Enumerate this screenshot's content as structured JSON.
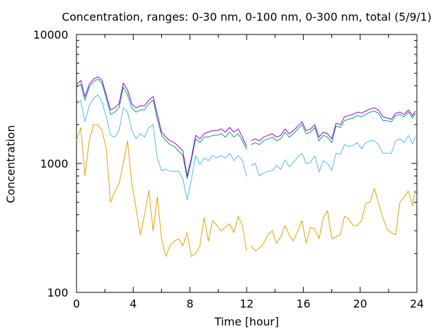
{
  "chart_data": {
    "type": "line",
    "title": "Concentration, ranges: 0-30 nm, 0-100 nm, 0-300 nm, total (5/9/1)",
    "xlabel": "Time [hour]",
    "ylabel": "Concentration",
    "xlim": [
      0,
      24
    ],
    "ylim": [
      100,
      10000
    ],
    "yscale": "log",
    "grid": false,
    "legend": "none",
    "x_ticks": [
      "0",
      "4",
      "8",
      "12",
      "16",
      "20",
      "24"
    ],
    "y_ticks": [
      "100",
      "1000",
      "10000"
    ],
    "series": [
      {
        "color": "#e0a000",
        "x": [
          0.0,
          0.3,
          0.6,
          0.9,
          1.2,
          1.5,
          1.8,
          2.1,
          2.4,
          2.7,
          3.0,
          3.3,
          3.6,
          3.9,
          4.2,
          4.5,
          4.8,
          5.1,
          5.4,
          5.7,
          6.0,
          6.3,
          6.6,
          6.9,
          7.2,
          7.5,
          7.8,
          8.1,
          8.4,
          8.7,
          9.0,
          9.3,
          9.6,
          9.9,
          10.2,
          10.5,
          10.8,
          11.1,
          11.4,
          11.7,
          12.0,
          null,
          12.3,
          12.6,
          12.9,
          13.2,
          13.5,
          13.8,
          14.1,
          14.4,
          14.7,
          15.0,
          15.3,
          15.6,
          15.9,
          16.2,
          16.5,
          16.8,
          17.1,
          17.4,
          17.7,
          18.0,
          18.3,
          18.6,
          18.9,
          19.2,
          19.5,
          19.8,
          20.1,
          20.4,
          20.7,
          21.0,
          21.3,
          21.6,
          21.9,
          22.2,
          22.5,
          22.8,
          23.1,
          23.4,
          23.7,
          23.9
        ],
        "y": [
          1500,
          1900,
          800,
          1500,
          2000,
          2000,
          1800,
          1300,
          500,
          600,
          700,
          1000,
          1500,
          700,
          450,
          280,
          400,
          620,
          300,
          550,
          260,
          190,
          230,
          250,
          260,
          230,
          290,
          190,
          200,
          230,
          380,
          250,
          360,
          330,
          300,
          320,
          340,
          290,
          390,
          330,
          210,
          null,
          230,
          210,
          220,
          240,
          280,
          300,
          240,
          270,
          330,
          280,
          250,
          300,
          360,
          240,
          320,
          310,
          260,
          380,
          430,
          260,
          270,
          280,
          390,
          370,
          330,
          330,
          360,
          490,
          500,
          640,
          490,
          380,
          310,
          290,
          280,
          500,
          550,
          610,
          470,
          620
        ]
      },
      {
        "color": "#56b4e9",
        "x": [
          0.0,
          0.3,
          0.6,
          0.9,
          1.2,
          1.5,
          1.8,
          2.1,
          2.4,
          2.7,
          3.0,
          3.3,
          3.6,
          3.9,
          4.2,
          4.5,
          4.8,
          5.1,
          5.4,
          5.7,
          6.0,
          6.3,
          6.6,
          6.9,
          7.2,
          7.5,
          7.8,
          8.1,
          8.4,
          8.7,
          9.0,
          9.3,
          9.6,
          9.9,
          10.2,
          10.5,
          10.8,
          11.1,
          11.4,
          11.7,
          12.0,
          null,
          12.3,
          12.6,
          12.9,
          13.2,
          13.5,
          13.8,
          14.1,
          14.4,
          14.7,
          15.0,
          15.3,
          15.6,
          15.9,
          16.2,
          16.5,
          16.8,
          17.1,
          17.4,
          17.7,
          18.0,
          18.3,
          18.6,
          18.9,
          19.2,
          19.5,
          19.8,
          20.1,
          20.4,
          20.7,
          21.0,
          21.3,
          21.6,
          21.9,
          22.2,
          22.5,
          22.8,
          23.1,
          23.4,
          23.7,
          23.9
        ],
        "y": [
          2900,
          3100,
          2100,
          2800,
          3200,
          3400,
          3000,
          2300,
          1650,
          1600,
          1800,
          2700,
          2500,
          1800,
          1550,
          1700,
          1600,
          1900,
          2000,
          1100,
          880,
          900,
          870,
          870,
          870,
          760,
          520,
          750,
          1150,
          980,
          1100,
          1050,
          1150,
          1100,
          1150,
          1100,
          1200,
          1050,
          1150,
          1050,
          790,
          null,
          960,
          1000,
          800,
          840,
          870,
          880,
          960,
          900,
          1070,
          940,
          1020,
          1120,
          1200,
          1000,
          1020,
          1150,
          860,
          1050,
          1000,
          880,
          1200,
          1180,
          1400,
          1350,
          1380,
          1450,
          1300,
          1450,
          1500,
          1500,
          1400,
          1200,
          1200,
          1200,
          1500,
          1550,
          1450,
          1650,
          1420,
          1620
        ]
      },
      {
        "color": "#009e73",
        "x": [
          0.0,
          0.3,
          0.6,
          0.9,
          1.2,
          1.5,
          1.8,
          2.1,
          2.4,
          2.7,
          3.0,
          3.3,
          3.6,
          3.9,
          4.2,
          4.5,
          4.8,
          5.1,
          5.4,
          5.7,
          6.0,
          6.3,
          6.6,
          6.9,
          7.2,
          7.5,
          7.8,
          8.1,
          8.4,
          8.7,
          9.0,
          9.3,
          9.6,
          9.9,
          10.2,
          10.5,
          10.8,
          11.1,
          11.4,
          11.7,
          12.0,
          null,
          12.3,
          12.6,
          12.9,
          13.2,
          13.5,
          13.8,
          14.1,
          14.4,
          14.7,
          15.0,
          15.3,
          15.6,
          15.9,
          16.2,
          16.5,
          16.8,
          17.1,
          17.4,
          17.7,
          18.0,
          18.3,
          18.6,
          18.9,
          19.2,
          19.5,
          19.8,
          20.1,
          20.4,
          20.7,
          21.0,
          21.3,
          21.6,
          21.9,
          22.2,
          22.5,
          22.8,
          23.1,
          23.4,
          23.7,
          23.9
        ],
        "y": [
          3900,
          4100,
          3100,
          3900,
          4300,
          4500,
          4200,
          3200,
          2400,
          2500,
          2700,
          3900,
          3400,
          2700,
          2500,
          2600,
          2600,
          2900,
          3100,
          2200,
          1650,
          1500,
          1400,
          1350,
          1250,
          1150,
          760,
          1050,
          1550,
          1450,
          1600,
          1600,
          1650,
          1650,
          1700,
          1600,
          1750,
          1600,
          1700,
          1500,
          1280,
          null,
          1400,
          1450,
          1400,
          1500,
          1550,
          1600,
          1500,
          1550,
          1750,
          1600,
          1700,
          1850,
          2000,
          1700,
          1750,
          1900,
          1500,
          1650,
          1600,
          1450,
          1950,
          1900,
          2150,
          2200,
          2250,
          2350,
          2300,
          2400,
          2500,
          2550,
          2450,
          2150,
          2150,
          2100,
          2350,
          2400,
          2300,
          2500,
          2250,
          2450
        ]
      },
      {
        "color": "#9400d3",
        "x": [
          0.0,
          0.3,
          0.6,
          0.9,
          1.2,
          1.5,
          1.8,
          2.1,
          2.4,
          2.7,
          3.0,
          3.3,
          3.6,
          3.9,
          4.2,
          4.5,
          4.8,
          5.1,
          5.4,
          5.7,
          6.0,
          6.3,
          6.6,
          6.9,
          7.2,
          7.5,
          7.8,
          8.1,
          8.4,
          8.7,
          9.0,
          9.3,
          9.6,
          9.9,
          10.2,
          10.5,
          10.8,
          11.1,
          11.4,
          11.7,
          12.0,
          null,
          12.3,
          12.6,
          12.9,
          13.2,
          13.5,
          13.8,
          14.1,
          14.4,
          14.7,
          15.0,
          15.3,
          15.6,
          15.9,
          16.2,
          16.5,
          16.8,
          17.1,
          17.4,
          17.7,
          18.0,
          18.3,
          18.6,
          18.9,
          19.2,
          19.5,
          19.8,
          20.1,
          20.4,
          20.7,
          21.0,
          21.3,
          21.6,
          21.9,
          22.2,
          22.5,
          22.8,
          23.1,
          23.4,
          23.7,
          23.9
        ],
        "y": [
          4100,
          4400,
          3300,
          4100,
          4500,
          4700,
          4400,
          3400,
          2600,
          2700,
          2900,
          4200,
          3700,
          2900,
          2700,
          2800,
          2800,
          3100,
          3300,
          2400,
          1750,
          1600,
          1500,
          1450,
          1350,
          1250,
          800,
          1100,
          1650,
          1550,
          1700,
          1750,
          1800,
          1800,
          1850,
          1750,
          1900,
          1750,
          1850,
          1600,
          1350,
          null,
          1500,
          1550,
          1500,
          1600,
          1650,
          1700,
          1600,
          1650,
          1850,
          1700,
          1800,
          1950,
          2100,
          1800,
          1850,
          2000,
          1600,
          1750,
          1700,
          1550,
          2050,
          2000,
          2300,
          2350,
          2400,
          2500,
          2450,
          2550,
          2650,
          2700,
          2600,
          2300,
          2250,
          2200,
          2450,
          2500,
          2400,
          2600,
          2350,
          2550
        ]
      }
    ]
  }
}
